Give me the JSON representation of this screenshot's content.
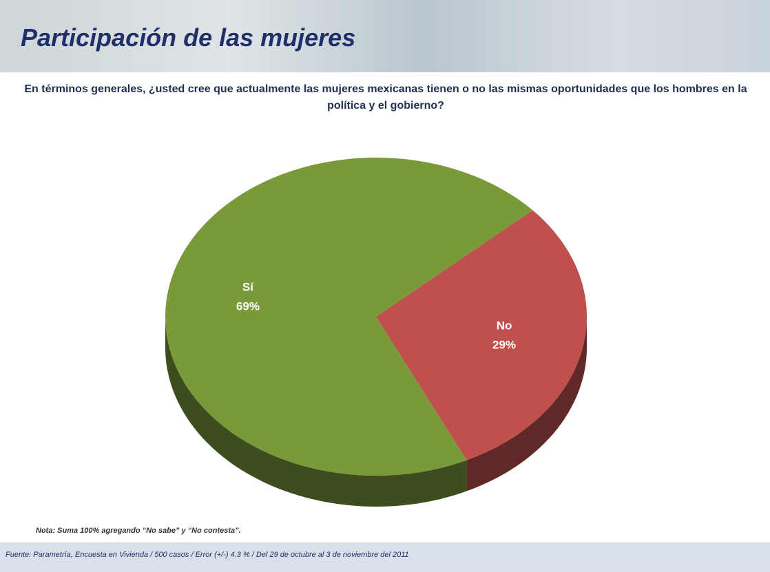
{
  "chart_data": {
    "type": "pie",
    "title": "Participación de las mujeres",
    "subtitle": "En términos generales, ¿usted cree que actualmente las mujeres mexicanas tienen o no las mismas oportunidades que los hombres en la política y el gobierno?",
    "categories": [
      "Sí",
      "No"
    ],
    "values": [
      69,
      29
    ],
    "value_labels": [
      "69%",
      "29%"
    ],
    "colors": [
      "#7a9a3a",
      "#c0504d"
    ],
    "note": "Nota: Suma 100% agregando “No sabe” y “No contesta”.",
    "source": "Fuente: Parametría, Encuesta en Vivienda / 500 casos / Error (+/-) 4.3 % / Del 29 de octubre al 3 de noviembre del 2011"
  }
}
